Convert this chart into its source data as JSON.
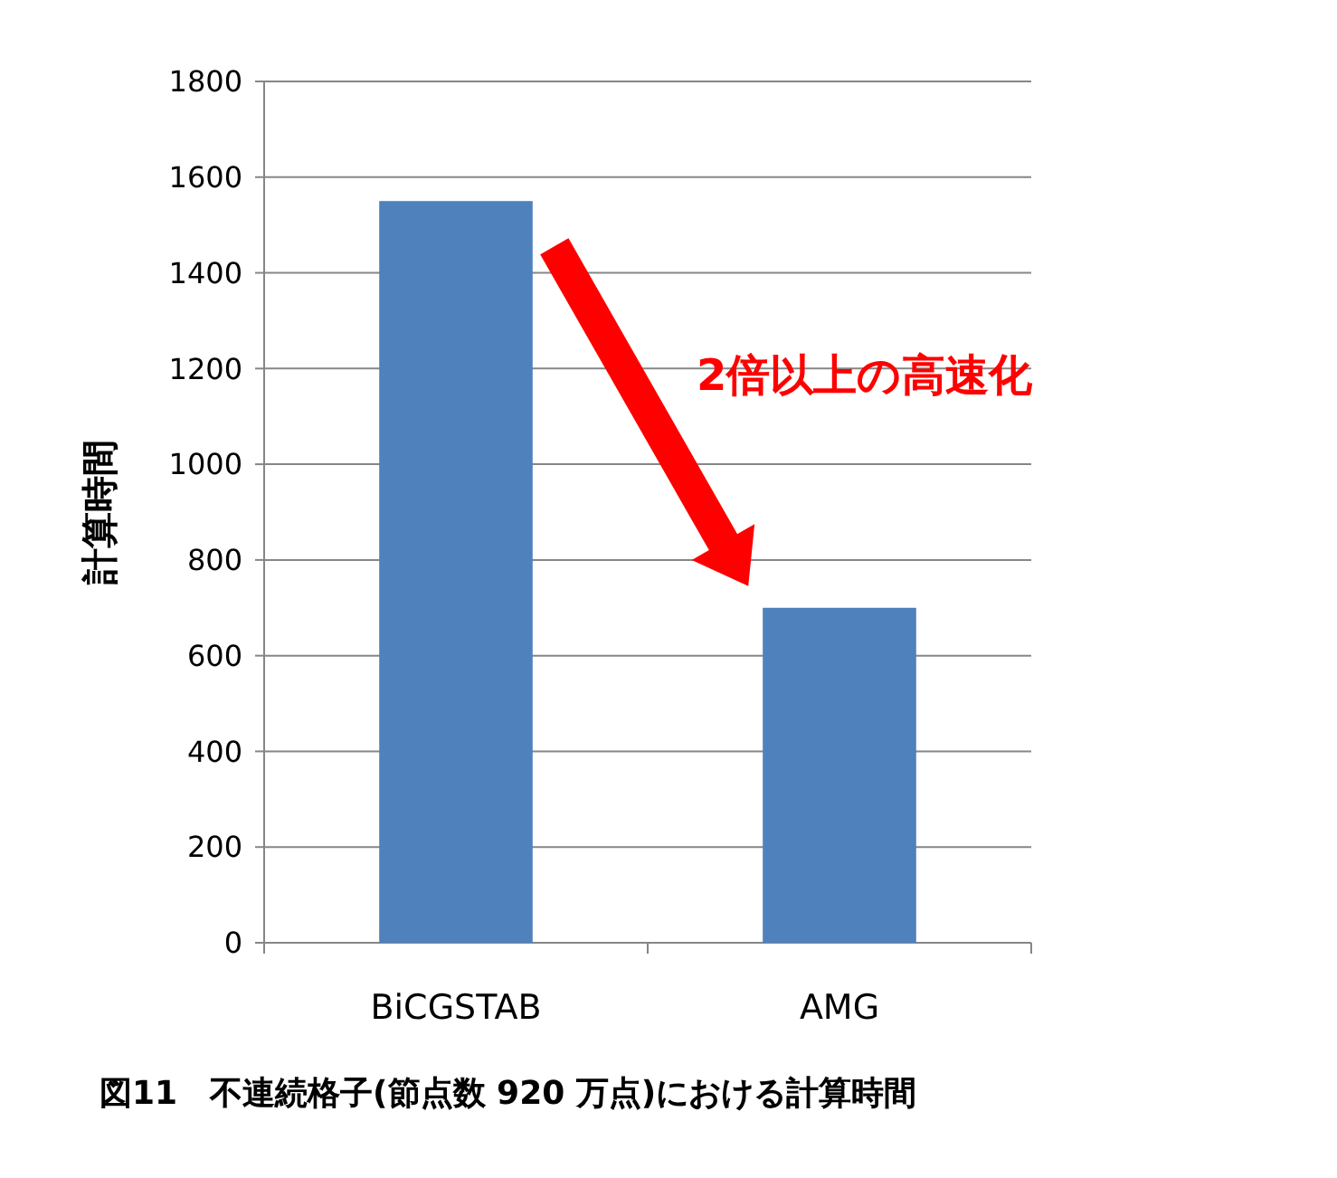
{
  "chart_data": {
    "type": "bar",
    "title": "図11　不連続格子(節点数 920 万点)における計算時間",
    "ylabel": "計算時間",
    "categories": [
      "BiCGSTAB",
      "AMG"
    ],
    "values": [
      1550,
      700
    ],
    "color": "#4f81bd",
    "ylim": [
      0,
      1800
    ],
    "yticks": [
      0,
      200,
      400,
      600,
      800,
      1000,
      1200,
      1400,
      1600,
      1800
    ],
    "grid": "y",
    "annotations": [
      "2倍以上の高速化"
    ]
  }
}
